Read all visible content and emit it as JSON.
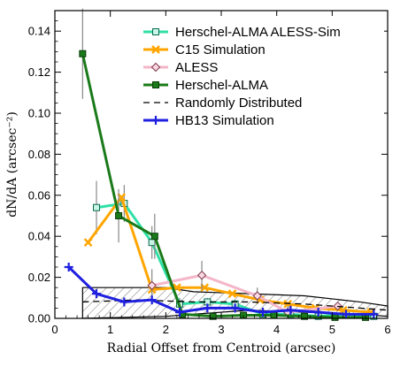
{
  "chart_data": {
    "type": "line",
    "xlabel": "Radial Offset from Centroid (arcsec)",
    "ylabel": "dN/dA (arcsec⁻²)",
    "xlim": [
      0,
      6
    ],
    "ylim": [
      0,
      0.15
    ],
    "xticks": [
      0,
      1,
      2,
      3,
      4,
      5,
      6
    ],
    "yticks": [
      0.0,
      0.02,
      0.04,
      0.06,
      0.08,
      0.1,
      0.12,
      0.14
    ],
    "ytick_labels": [
      "0.00",
      "0.02",
      "0.04",
      "0.06",
      "0.08",
      "0.10",
      "0.12",
      "0.14"
    ],
    "legend_position": "top-right",
    "series": [
      {
        "name": "Herschel-ALMA ALESS-Sim",
        "color": "#2fe0a6",
        "marker": "square-open",
        "x": [
          0.75,
          1.25,
          1.75,
          2.25,
          2.75,
          3.25,
          3.75,
          4.25,
          4.75,
          5.25,
          5.75
        ],
        "y": [
          0.054,
          0.056,
          0.037,
          0.007,
          0.008,
          0.007,
          0.002,
          0.002,
          0.001,
          0.002,
          0.001
        ],
        "yerr": [
          0.013,
          0.009,
          0.008,
          0.003,
          0.002,
          0.002,
          0.001,
          0.001,
          0.001,
          0.001,
          0.001
        ]
      },
      {
        "name": "C15 Simulation",
        "color": "#ffa500",
        "marker": "x",
        "x": [
          0.6,
          1.2,
          1.75,
          2.2,
          2.7,
          3.2,
          3.7,
          4.2,
          4.7,
          5.2,
          5.7
        ],
        "y": [
          0.037,
          0.059,
          0.014,
          0.015,
          0.015,
          0.012,
          0.009,
          0.007,
          0.005,
          0.004,
          0.003
        ]
      },
      {
        "name": "ALESS",
        "color": "#f4b6c8",
        "marker": "diamond-open",
        "x": [
          1.75,
          2.65,
          3.65,
          4.2,
          5.1
        ],
        "y": [
          0.016,
          0.021,
          0.011,
          0.003,
          0.006
        ],
        "yerr": [
          0.008,
          0.007,
          0.004,
          0.003,
          0.002
        ]
      },
      {
        "name": "Herschel-ALMA",
        "color": "#1a7a1a",
        "marker": "square",
        "x": [
          0.5,
          1.15,
          1.8,
          2.3,
          2.85,
          3.4,
          3.95,
          4.5,
          5.05,
          5.6
        ],
        "y": [
          0.129,
          0.05,
          0.04,
          0.002,
          0.001,
          0.0015,
          0.0015,
          0.001,
          0.0005,
          0.0005
        ],
        "yerr": [
          0.022,
          0.013,
          0.011,
          0.002,
          0.001,
          0.001,
          0.001,
          0.001,
          0.0005,
          0.0005
        ]
      },
      {
        "name": "Randomly Distributed",
        "color": "#000000",
        "marker": "none",
        "dash": true,
        "x": [
          0.5,
          1.5,
          2.5,
          3.5,
          4.5,
          5.5,
          6.0
        ],
        "y": [
          0.008,
          0.009,
          0.008,
          0.008,
          0.007,
          0.005,
          0.004
        ]
      },
      {
        "name": "HB13 Simulation",
        "color": "#1f1fe0",
        "marker": "plus",
        "x": [
          0.25,
          0.75,
          1.25,
          1.75,
          2.25,
          2.75,
          3.25,
          3.75,
          4.25,
          4.75,
          5.25,
          5.75
        ],
        "y": [
          0.025,
          0.012,
          0.008,
          0.009,
          0.003,
          0.005,
          0.005,
          0.003,
          0.004,
          0.003,
          0.002,
          0.002
        ]
      }
    ],
    "random_band": {
      "x": [
        0.5,
        2.0,
        2.5,
        3.5,
        4.5,
        5.5,
        6.0
      ],
      "upper": [
        0.015,
        0.015,
        0.013,
        0.012,
        0.011,
        0.008,
        0.006
      ],
      "lower": [
        0.0,
        0.001,
        0.002,
        0.004,
        0.003,
        0.002,
        0.001
      ]
    }
  }
}
